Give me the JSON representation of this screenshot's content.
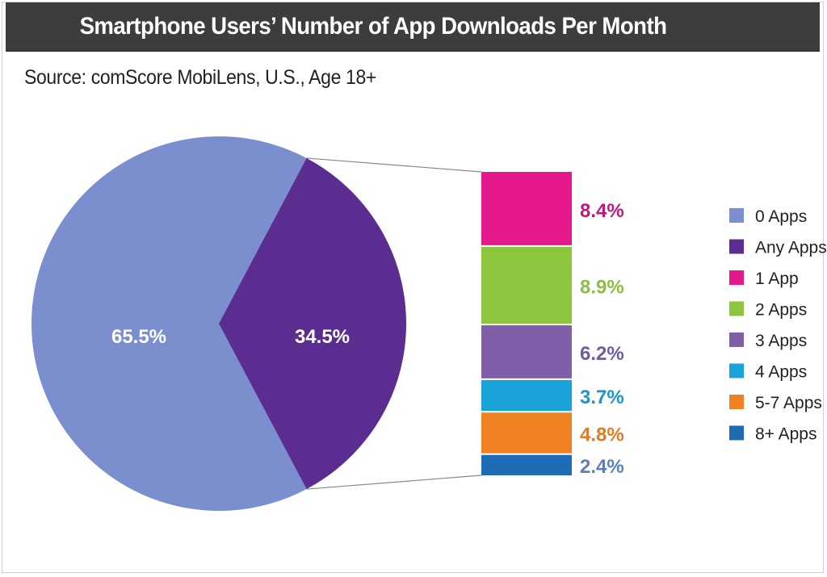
{
  "header": {
    "title": "Smartphone Users’ Number of App Downloads Per Month",
    "source": "Source: comScore MobiLens, U.S., Age 18+"
  },
  "chart_data": {
    "type": "pie",
    "title": "Smartphone Users’ Number of App Downloads Per Month",
    "subtitle": "Source: comScore MobiLens, U.S., Age 18+",
    "pie": {
      "slices": [
        {
          "name": "0 Apps",
          "value": 65.5,
          "label": "65.5%",
          "color": "#7b8fcf"
        },
        {
          "name": "Any Apps",
          "value": 34.5,
          "label": "34.5%",
          "color": "#5c2d91"
        }
      ]
    },
    "breakdown_of": "Any Apps",
    "bar": {
      "segments": [
        {
          "name": "1 App",
          "value": 8.4,
          "label": "8.4%",
          "color": "#e5198c",
          "label_color": "#c0187a"
        },
        {
          "name": "2 Apps",
          "value": 8.9,
          "label": "8.9%",
          "color": "#8cc63f",
          "label_color": "#8cbf3f"
        },
        {
          "name": "3 Apps",
          "value": 6.2,
          "label": "6.2%",
          "color": "#7f5fa8",
          "label_color": "#6f5c9e"
        },
        {
          "name": "4 Apps",
          "value": 3.7,
          "label": "3.7%",
          "color": "#1aa3d9",
          "label_color": "#1a95c9"
        },
        {
          "name": "5-7 Apps",
          "value": 4.8,
          "label": "4.8%",
          "color": "#f08223",
          "label_color": "#e07c25"
        },
        {
          "name": "8+ Apps",
          "value": 2.4,
          "label": "2.4%",
          "color": "#1f6cb5",
          "label_color": "#5b7fb6"
        }
      ]
    },
    "legend": {
      "placement": "right",
      "entries": [
        {
          "name": "0 Apps",
          "color": "#7b8fcf"
        },
        {
          "name": "Any Apps",
          "color": "#5c2d91"
        },
        {
          "name": "1 App",
          "color": "#e5198c"
        },
        {
          "name": "2 Apps",
          "color": "#8cc63f"
        },
        {
          "name": "3 Apps",
          "color": "#7f5fa8"
        },
        {
          "name": "4 Apps",
          "color": "#1aa3d9"
        },
        {
          "name": "5-7 Apps",
          "color": "#f08223"
        },
        {
          "name": "8+ Apps",
          "color": "#1f6cb5"
        }
      ]
    }
  }
}
